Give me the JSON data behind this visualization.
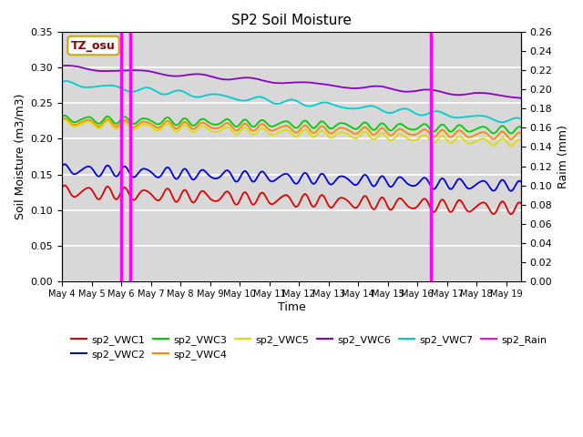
{
  "title": "SP2 Soil Moisture",
  "xlabel": "Time",
  "ylabel_left": "Soil Moisture (m3/m3)",
  "ylabel_right": "Raim (mm)",
  "xlim_days": [
    0,
    15.5
  ],
  "ylim_left": [
    0,
    0.35
  ],
  "ylim_right": [
    0,
    0.26
  ],
  "yticks_left": [
    0.0,
    0.05,
    0.1,
    0.15,
    0.2,
    0.25,
    0.3,
    0.35
  ],
  "yticks_right": [
    0.0,
    0.02,
    0.04,
    0.06,
    0.08,
    0.1,
    0.12,
    0.14,
    0.16,
    0.18,
    0.2,
    0.22,
    0.24,
    0.26
  ],
  "xtick_labels": [
    "May 4",
    "May 5",
    "May 6",
    "May 7",
    "May 8",
    "May 9",
    "May 10",
    "May 11",
    "May 12",
    "May 13",
    "May 14",
    "May 15",
    "May 16",
    "May 17",
    "May 18",
    "May 19"
  ],
  "rain_events": [
    2.0,
    2.3,
    12.45
  ],
  "annotation_label": "TZ_osu",
  "colors": {
    "sp2_VWC1": "#dd0000",
    "sp2_VWC2": "#0000dd",
    "sp2_VWC3": "#00cc00",
    "sp2_VWC4": "#ff8800",
    "sp2_VWC5": "#dddd00",
    "sp2_VWC6": "#8800cc",
    "sp2_VWC7": "#00cccc",
    "sp2_Rain": "#ff00ff"
  },
  "background_color": "#d8d8d8",
  "grid_color": "#ffffff"
}
